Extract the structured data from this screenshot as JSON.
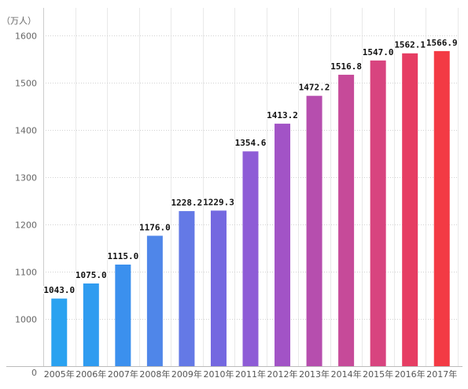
{
  "chart_data": {
    "type": "bar",
    "unit_label": "（万人）",
    "categories": [
      "2005年",
      "2006年",
      "2007年",
      "2008年",
      "2009年",
      "2010年",
      "2011年",
      "2012年",
      "2013年",
      "2014年",
      "2015年",
      "2016年",
      "2017年"
    ],
    "values": [
      1043.0,
      1075.0,
      1115.0,
      1176.0,
      1228.2,
      1229.3,
      1354.6,
      1413.2,
      1472.2,
      1516.8,
      1547.0,
      1562.1,
      1566.9
    ],
    "value_labels": [
      "1043.0",
      "1075.0",
      "1115.0",
      "1176.0",
      "1228.2",
      "1229.3",
      "1354.6",
      "1413.2",
      "1472.2",
      "1516.8",
      "1547.0",
      "1562.1",
      "1566.9"
    ],
    "y_ticks": [
      {
        "value": 1000,
        "label": "1000"
      },
      {
        "value": 1100,
        "label": "1100"
      },
      {
        "value": 1200,
        "label": "1200"
      },
      {
        "value": 1300,
        "label": "1300"
      },
      {
        "value": 1400,
        "label": "1400"
      },
      {
        "value": 1500,
        "label": "1500"
      },
      {
        "value": 1600,
        "label": "1600"
      }
    ],
    "y_zero_label": "0",
    "ylim": [
      1000,
      1600
    ],
    "grid": true,
    "colors": [
      "#2aa2f0",
      "#2f9cf0",
      "#3b90ee",
      "#4f86e9",
      "#6479e6",
      "#7468e0",
      "#8e5cd6",
      "#a253c6",
      "#b64eae",
      "#c64a99",
      "#d8447f",
      "#e63d63",
      "#f33a44"
    ]
  }
}
